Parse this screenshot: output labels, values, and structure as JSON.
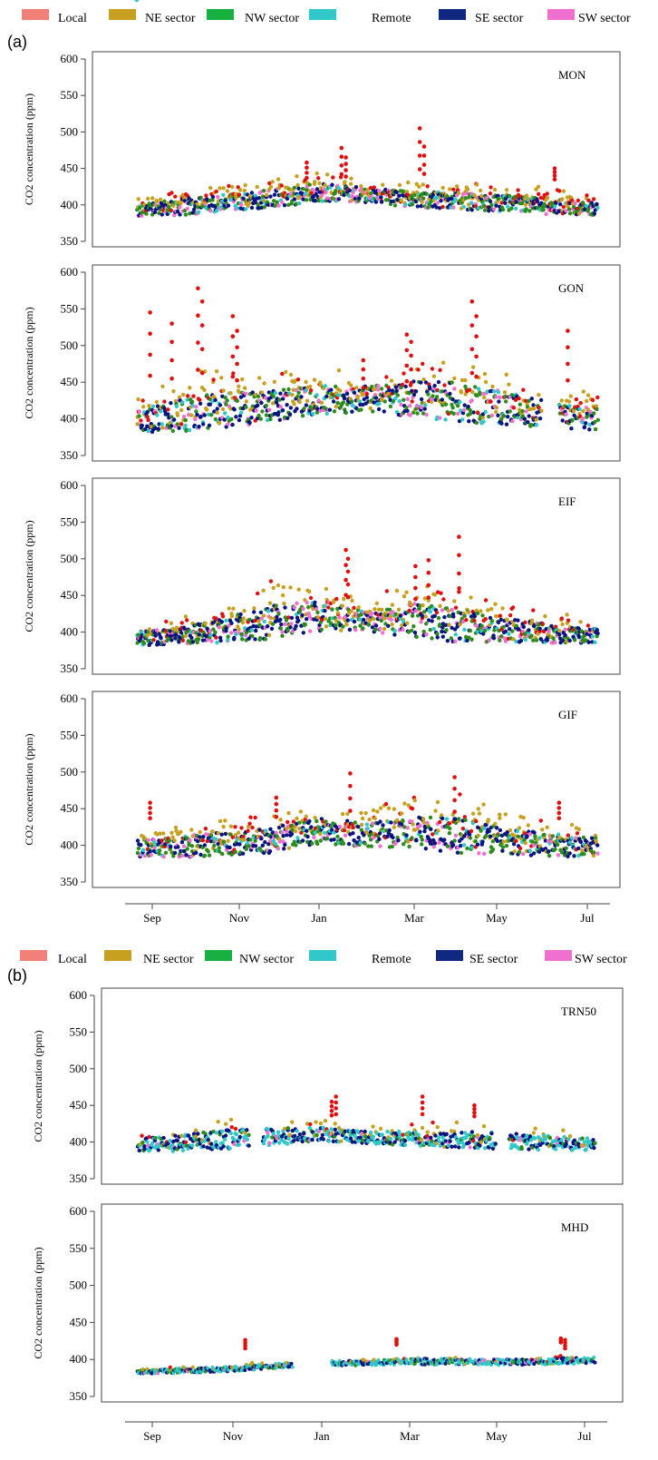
{
  "chart_data": {
    "type": "scatter",
    "ylabel": "CO2 concentration (ppm)",
    "ylim": [
      350,
      600
    ],
    "yticks": [
      350,
      400,
      450,
      500,
      550,
      600
    ],
    "x_months": [
      "Sep",
      "Nov",
      "Jan",
      "Mar",
      "May",
      "Jul"
    ],
    "legend": [
      {
        "name": "Local",
        "color": "#f08078"
      },
      {
        "name": "NE sector",
        "color": "#c8a020"
      },
      {
        "name": "NW sector",
        "color": "#18b040"
      },
      {
        "name": "Remote",
        "color": "#30c8c8"
      },
      {
        "name": "SE sector",
        "color": "#102880"
      },
      {
        "name": "SW sector",
        "color": "#f070d0"
      }
    ],
    "point_colors": {
      "Local": "#e01010",
      "NE sector": "#c8a020",
      "NW sector": "#2e8b1e",
      "Remote": "#30c8c8",
      "SE sector": "#0b1580",
      "SW sector": "#f070d0"
    },
    "panels": [
      {
        "label": "(a)",
        "sites": [
          {
            "name": "MON",
            "base": [
              388,
              394,
              400,
              406,
              414,
              410,
              404,
              402,
              398,
              394,
              392
            ],
            "spread": [
              12,
              14,
              14,
              16,
              16,
              12,
              14,
              14,
              14,
              14,
              12
            ],
            "spikes": [
              [
                4.7,
                478
              ],
              [
                4.8,
                465
              ],
              [
                6.5,
                505
              ],
              [
                6.6,
                480
              ],
              [
                9.6,
                450
              ],
              [
                3.9,
                458
              ]
            ],
            "gaps": []
          },
          {
            "name": "GON",
            "base": [
              392,
              398,
              404,
              412,
              420,
              422,
              420,
              414,
              408,
              400,
              395
            ],
            "spread": [
              18,
              30,
              30,
              26,
              24,
              22,
              30,
              34,
              28,
              22,
              18
            ],
            "spikes": [
              [
                0.3,
                545
              ],
              [
                0.8,
                530
              ],
              [
                1.4,
                578
              ],
              [
                1.5,
                560
              ],
              [
                2.2,
                540
              ],
              [
                2.3,
                520
              ],
              [
                6.2,
                515
              ],
              [
                6.3,
                505
              ],
              [
                7.7,
                560
              ],
              [
                7.8,
                540
              ],
              [
                9.9,
                520
              ],
              [
                5.2,
                480
              ]
            ],
            "gaps": [
              [
                9.3,
                9.7
              ]
            ]
          },
          {
            "name": "EIF",
            "base": [
              388,
              392,
              398,
              408,
              416,
              410,
              408,
              402,
              398,
              394,
              392
            ],
            "spread": [
              12,
              14,
              22,
              30,
              26,
              16,
              30,
              28,
              20,
              16,
              12
            ],
            "spikes": [
              [
                4.8,
                512
              ],
              [
                4.85,
                500
              ],
              [
                7.4,
                530
              ],
              [
                6.7,
                498
              ],
              [
                6.4,
                490
              ]
            ],
            "gaps": []
          },
          {
            "name": "GIF",
            "base": [
              392,
              394,
              398,
              402,
              414,
              410,
              412,
              406,
              400,
              396,
              394
            ],
            "spread": [
              14,
              18,
              20,
              22,
              22,
              20,
              28,
              30,
              22,
              20,
              16
            ],
            "spikes": [
              [
                0.3,
                458
              ],
              [
                4.9,
                498
              ],
              [
                7.3,
                493
              ],
              [
                9.7,
                458
              ],
              [
                3.2,
                465
              ]
            ],
            "gaps": []
          }
        ]
      },
      {
        "label": "(b)",
        "sites": [
          {
            "name": "TRN50",
            "base": [
              392,
              396,
              400,
              404,
              408,
              404,
              402,
              400,
              398,
              396,
              394
            ],
            "spread": [
              12,
              14,
              16,
              14,
              12,
              10,
              12,
              14,
              14,
              12,
              10
            ],
            "spikes": [
              [
                4.6,
                462
              ],
              [
                4.5,
                455
              ],
              [
                6.6,
                462
              ],
              [
                7.8,
                450
              ]
            ],
            "gaps": [
              [
                2.6,
                2.9
              ],
              [
                8.3,
                8.6
              ]
            ]
          },
          {
            "name": "MHD",
            "base": [
              382,
              384,
              386,
              390,
              394,
              394,
              396,
              396,
              395,
              396,
              398
            ],
            "spread": [
              3,
              4,
              4,
              4,
              4,
              4,
              5,
              5,
              5,
              5,
              6
            ],
            "spikes": [
              [
                2.5,
                415
              ],
              [
                6.0,
                420
              ],
              [
                9.8,
                423
              ],
              [
                9.9,
                415
              ]
            ],
            "gaps": [
              [
                3.6,
                4.5
              ]
            ]
          }
        ]
      }
    ]
  }
}
